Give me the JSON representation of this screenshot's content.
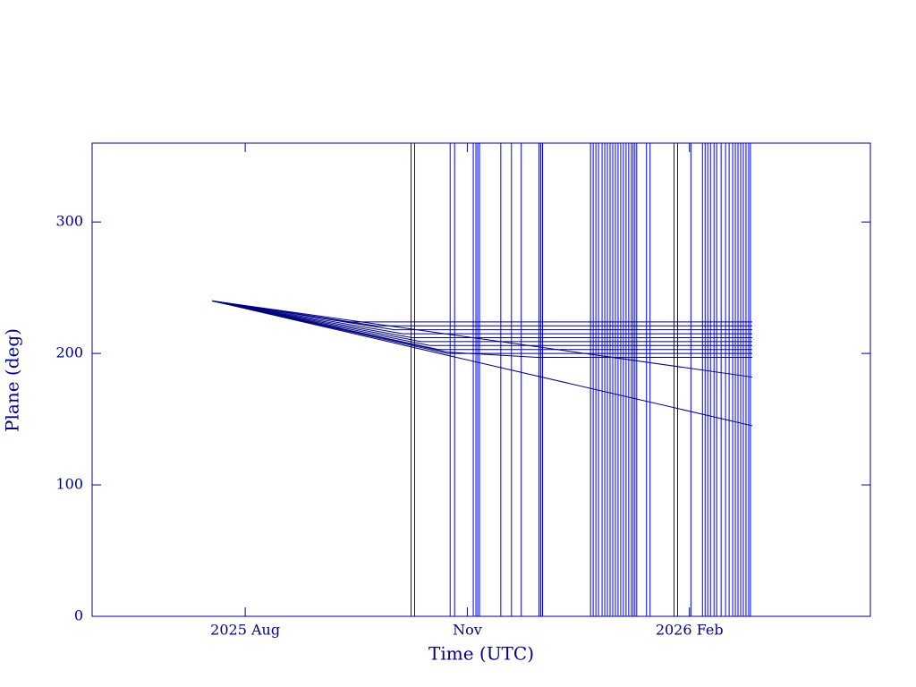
{
  "chart_data": {
    "type": "line",
    "xlabel": "Time (UTC)",
    "ylabel": "Plane (deg)",
    "xlim": [
      2025.411,
      2026.287
    ],
    "ylim": [
      0,
      360
    ],
    "xticks": [
      {
        "value": 2025.5833,
        "label": "2025 Aug"
      },
      {
        "value": 2025.8333,
        "label": "Nov"
      },
      {
        "value": 2026.0833,
        "label": "2026 Feb"
      }
    ],
    "yticks": [
      0,
      100,
      200,
      300
    ],
    "color": "#000080",
    "vline_color": "#0000ff",
    "axis_color": "#00008b",
    "series": [
      {
        "x": [
          2025.546,
          2025.7,
          2026.154
        ],
        "values": [
          240,
          224,
          224
        ]
      },
      {
        "x": [
          2025.546,
          2025.731,
          2026.154
        ],
        "values": [
          240,
          221,
          221
        ]
      },
      {
        "x": [
          2025.546,
          2025.751,
          2026.154
        ],
        "values": [
          240,
          218,
          218
        ]
      },
      {
        "x": [
          2025.546,
          2025.761,
          2026.154
        ],
        "values": [
          240,
          215,
          215
        ]
      },
      {
        "x": [
          2025.546,
          2025.771,
          2026.154
        ],
        "values": [
          240,
          212,
          212
        ]
      },
      {
        "x": [
          2025.546,
          2025.781,
          2026.154
        ],
        "values": [
          240,
          209,
          209
        ]
      },
      {
        "x": [
          2025.546,
          2025.791,
          2026.154
        ],
        "values": [
          240,
          206,
          206
        ]
      },
      {
        "x": [
          2025.546,
          2025.801,
          2026.154
        ],
        "values": [
          240,
          203,
          203
        ]
      },
      {
        "x": [
          2025.546,
          2025.811,
          2026.154
        ],
        "values": [
          240,
          200,
          200
        ]
      },
      {
        "x": [
          2025.546,
          2025.811,
          2025.912,
          2026.154
        ],
        "values": [
          240,
          201,
          197,
          197
        ]
      },
      {
        "x": [
          2025.546,
          2026.154
        ],
        "values": [
          240,
          182
        ]
      },
      {
        "x": [
          2025.546,
          2026.154
        ],
        "values": [
          240,
          145
        ]
      }
    ],
    "vlines": [
      2025.77,
      2025.774,
      2025.814,
      2025.819,
      2025.84,
      2025.843,
      2025.845,
      2025.847,
      2025.871,
      2025.883,
      2025.894,
      2025.914,
      2025.916,
      2025.918,
      2025.972,
      2025.975,
      2025.978,
      2025.981,
      2025.985,
      2025.988,
      2025.991,
      2025.994,
      2025.997,
      2026.0,
      2026.003,
      2026.006,
      2026.009,
      2026.012,
      2026.015,
      2026.018,
      2026.02,
      2026.022,
      2026.024,
      2026.035,
      2026.039,
      2026.066,
      2026.07,
      2026.085,
      2026.098,
      2026.101,
      2026.104,
      2026.107,
      2026.111,
      2026.114,
      2026.119,
      2026.124,
      2026.128,
      2026.132,
      2026.135,
      2026.138,
      2026.141,
      2026.144,
      2026.147,
      2026.15,
      2026.152
    ]
  }
}
